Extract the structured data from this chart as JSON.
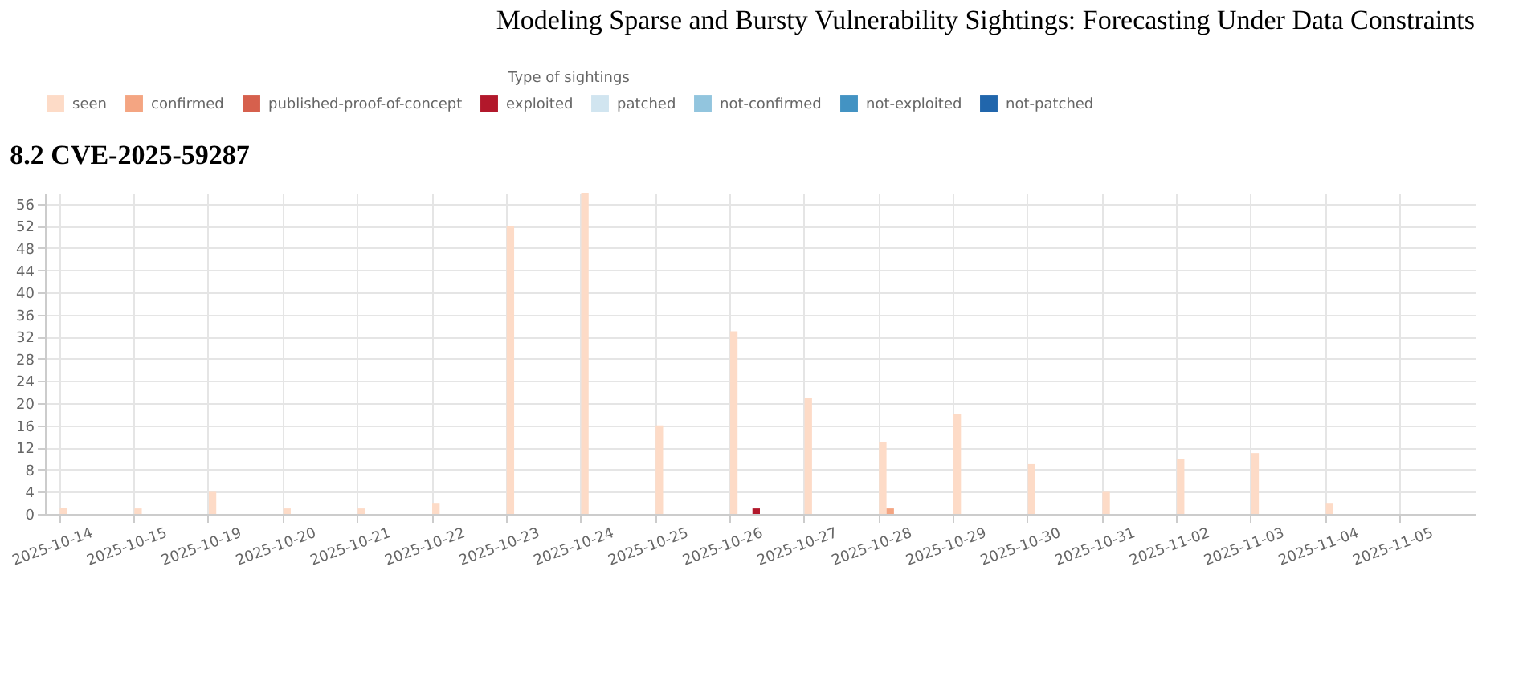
{
  "chart_data": {
    "type": "bar",
    "title": "8.2    CVE-2025-59287",
    "annotations": [
      "Modeling Sparse and Bursty Vulnerability Sightings: Forecasting Under Data Constraints"
    ],
    "legend_title": "Type of sightings",
    "categories": [
      "2025-10-14",
      "2025-10-15",
      "2025-10-19",
      "2025-10-20",
      "2025-10-21",
      "2025-10-22",
      "2025-10-23",
      "2025-10-24",
      "2025-10-25",
      "2025-10-26",
      "2025-10-27",
      "2025-10-28",
      "2025-10-29",
      "2025-10-30",
      "2025-10-31",
      "2025-11-02",
      "2025-11-03",
      "2025-11-04",
      "2025-11-05"
    ],
    "series": [
      {
        "name": "seen",
        "color": "#fddbc7",
        "values": [
          1,
          1,
          4,
          1,
          1,
          2,
          52,
          58,
          16,
          33,
          21,
          13,
          18,
          9,
          4,
          10,
          11,
          2,
          0
        ]
      },
      {
        "name": "confirmed",
        "color": "#f4a582",
        "values": [
          0,
          0,
          0,
          0,
          0,
          0,
          0,
          0,
          0,
          0,
          0,
          1,
          0,
          0,
          0,
          0,
          0,
          0,
          0
        ]
      },
      {
        "name": "published-proof-of-concept",
        "color": "#d6604d",
        "values": [
          0,
          0,
          0,
          0,
          0,
          0,
          0,
          0,
          0,
          0,
          0,
          0,
          0,
          0,
          0,
          0,
          0,
          0,
          0
        ]
      },
      {
        "name": "exploited",
        "color": "#b2182b",
        "values": [
          0,
          0,
          0,
          0,
          0,
          0,
          0,
          0,
          0,
          1,
          0,
          0,
          0,
          0,
          0,
          0,
          0,
          0,
          0
        ]
      },
      {
        "name": "patched",
        "color": "#d1e5f0",
        "values": [
          0,
          0,
          0,
          0,
          0,
          0,
          0,
          0,
          0,
          0,
          0,
          0,
          0,
          0,
          0,
          0,
          0,
          0,
          0
        ]
      },
      {
        "name": "not-confirmed",
        "color": "#92c5de",
        "values": [
          0,
          0,
          0,
          0,
          0,
          0,
          0,
          0,
          0,
          0,
          0,
          0,
          0,
          0,
          0,
          0,
          0,
          0,
          0
        ]
      },
      {
        "name": "not-exploited",
        "color": "#4393c3",
        "values": [
          0,
          0,
          0,
          0,
          0,
          0,
          0,
          0,
          0,
          0,
          0,
          0,
          0,
          0,
          0,
          0,
          0,
          0,
          0
        ]
      },
      {
        "name": "not-patched",
        "color": "#2166ac",
        "values": [
          0,
          0,
          0,
          0,
          0,
          0,
          0,
          0,
          0,
          0,
          0,
          0,
          0,
          0,
          0,
          0,
          0,
          0,
          0
        ]
      }
    ],
    "ylim": [
      0,
      58
    ],
    "yticks": [
      0,
      4,
      8,
      12,
      16,
      20,
      24,
      28,
      32,
      36,
      40,
      44,
      48,
      52,
      56
    ],
    "grid": true,
    "legend": "top"
  }
}
